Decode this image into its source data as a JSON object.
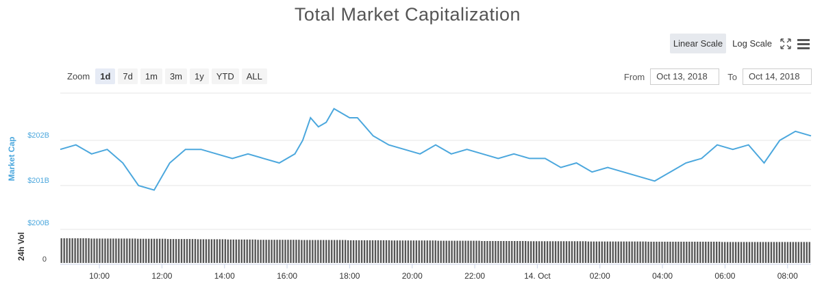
{
  "title": "Total Market Capitalization",
  "scale": {
    "linear_label": "Linear Scale",
    "log_label": "Log Scale",
    "active": "linear"
  },
  "icons": {
    "fullscreen": "fullscreen-icon",
    "menu": "hamburger-menu-icon"
  },
  "zoom": {
    "label": "Zoom",
    "buttons": [
      "1d",
      "7d",
      "1m",
      "3m",
      "1y",
      "YTD",
      "ALL"
    ],
    "active": "1d"
  },
  "range": {
    "from_label": "From",
    "from_value": "Oct 13, 2018",
    "to_label": "To",
    "to_value": "Oct 14, 2018"
  },
  "colors": {
    "line": "#4ba7dd",
    "volume": "#555555",
    "grid": "#e6e6e6"
  },
  "chart_data": [
    {
      "type": "line",
      "ylabel": "Market Cap",
      "yticks": [
        "$202B",
        "$201B",
        "$200B"
      ],
      "ytick_values": [
        202,
        201,
        200
      ],
      "ylim": [
        200.0,
        203.0
      ],
      "xticks": [
        "10:00",
        "12:00",
        "14:00",
        "16:00",
        "18:00",
        "20:00",
        "22:00",
        "14. Oct",
        "02:00",
        "04:00",
        "06:00",
        "08:00"
      ],
      "xtick_hours": [
        10,
        12,
        14,
        16,
        18,
        20,
        22,
        24,
        26,
        28,
        30,
        32
      ],
      "xlim_hours": [
        8.75,
        32.75
      ],
      "x_hours": [
        8.75,
        9.25,
        9.75,
        10.25,
        10.75,
        11.25,
        11.75,
        12.25,
        12.75,
        13.25,
        13.75,
        14.25,
        14.75,
        15.25,
        15.75,
        16.25,
        16.5,
        16.75,
        17.0,
        17.25,
        17.5,
        17.75,
        18.0,
        18.25,
        18.5,
        18.75,
        19.25,
        19.75,
        20.25,
        20.75,
        21.25,
        21.75,
        22.25,
        22.75,
        23.25,
        23.75,
        24.25,
        24.75,
        25.25,
        25.75,
        26.25,
        26.75,
        27.25,
        27.75,
        28.25,
        28.75,
        29.25,
        29.75,
        30.25,
        30.75,
        31.25,
        31.75,
        32.25,
        32.75
      ],
      "values": [
        201.8,
        201.9,
        201.7,
        201.8,
        201.5,
        201.0,
        200.9,
        201.5,
        201.8,
        201.8,
        201.7,
        201.6,
        201.7,
        201.6,
        201.5,
        201.7,
        202.0,
        202.5,
        202.3,
        202.4,
        202.7,
        202.6,
        202.5,
        202.5,
        202.3,
        202.1,
        201.9,
        201.8,
        201.7,
        201.9,
        201.7,
        201.8,
        201.7,
        201.6,
        201.7,
        201.6,
        201.6,
        201.4,
        201.5,
        201.3,
        201.4,
        201.3,
        201.2,
        201.1,
        201.3,
        201.5,
        201.6,
        201.9,
        201.8,
        201.9,
        201.5,
        202.0,
        202.2,
        202.1
      ],
      "series": [
        {
          "name": "Market Cap"
        }
      ]
    },
    {
      "type": "bar",
      "ylabel": "24h Vol",
      "yticks": [
        "0"
      ],
      "relative_values": [
        1.0,
        1.0,
        0.99,
        0.99,
        0.99,
        0.98,
        0.98,
        0.97,
        0.97,
        0.96,
        0.96,
        0.95,
        0.95,
        0.94,
        0.94,
        0.94,
        0.93,
        0.93,
        0.93,
        0.92,
        0.92,
        0.92,
        0.91,
        0.91,
        0.91,
        0.9,
        0.9,
        0.9,
        0.89,
        0.89,
        0.89,
        0.88,
        0.88,
        0.88,
        0.88,
        0.87,
        0.87,
        0.87,
        0.87,
        0.86,
        0.86,
        0.86,
        0.86,
        0.86,
        0.85,
        0.85,
        0.85,
        0.85,
        0.85,
        0.85
      ]
    }
  ]
}
